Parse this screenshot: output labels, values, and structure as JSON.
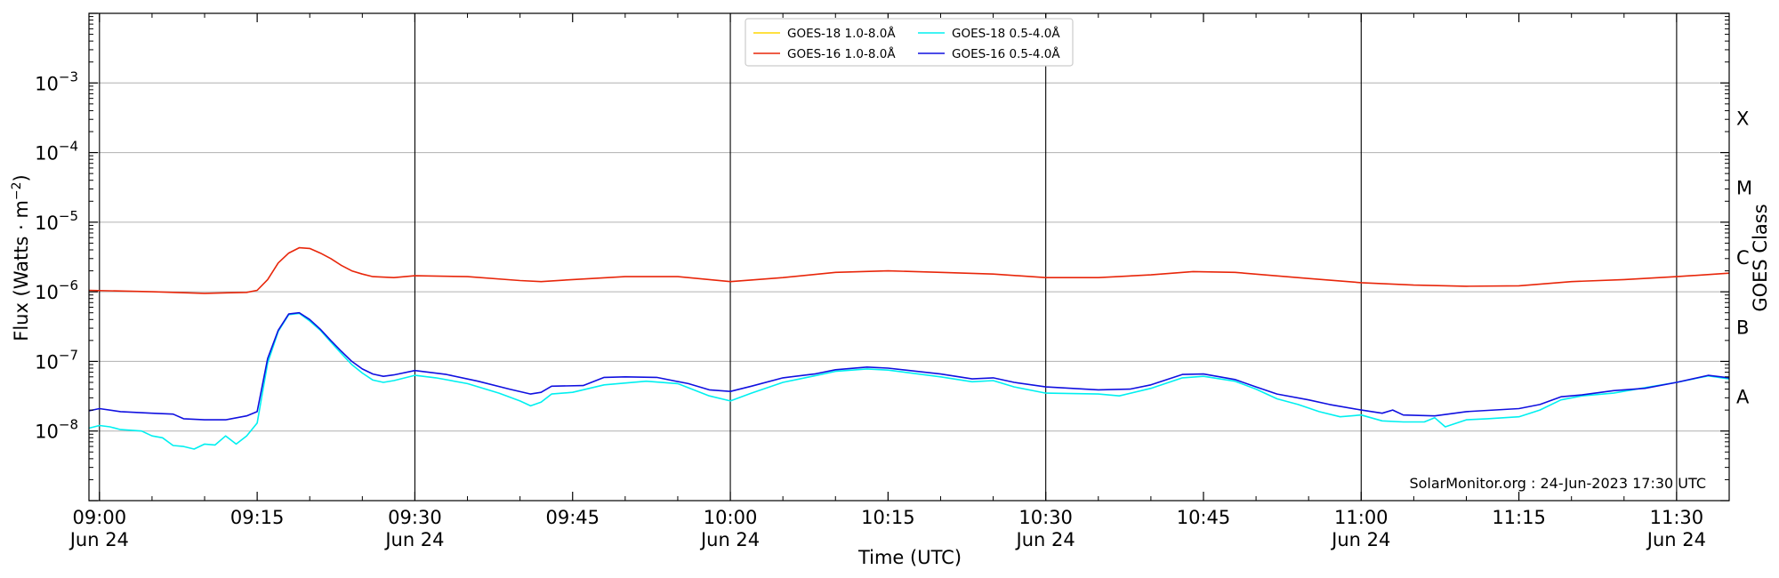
{
  "chart_data": {
    "type": "line",
    "xlabel": "Time (UTC)",
    "ylabel_main": "Flux (Watts · m",
    "ylabel_sup": "−2",
    "ylabel_close": ")",
    "ylabel_right": "GOES Class",
    "y_scale": "log",
    "ylim": [
      1e-09,
      0.01
    ],
    "xlim": [
      "08:59",
      "11:35"
    ],
    "grid": "horizontal at decades; vertical at half hours",
    "legend_position": "top-center",
    "watermark": "SolarMonitor.org : 24-Jun-2023 17:30 UTC",
    "x_ticks": [
      {
        "t": "09:00",
        "label": "09:00",
        "sub": "Jun 24"
      },
      {
        "t": "09:15",
        "label": "09:15",
        "sub": ""
      },
      {
        "t": "09:30",
        "label": "09:30",
        "sub": "Jun 24"
      },
      {
        "t": "09:45",
        "label": "09:45",
        "sub": ""
      },
      {
        "t": "10:00",
        "label": "10:00",
        "sub": "Jun 24"
      },
      {
        "t": "10:15",
        "label": "10:15",
        "sub": ""
      },
      {
        "t": "10:30",
        "label": "10:30",
        "sub": "Jun 24"
      },
      {
        "t": "10:45",
        "label": "10:45",
        "sub": ""
      },
      {
        "t": "11:00",
        "label": "11:00",
        "sub": "Jun 24"
      },
      {
        "t": "11:15",
        "label": "11:15",
        "sub": ""
      },
      {
        "t": "11:30",
        "label": "11:30",
        "sub": "Jun 24"
      }
    ],
    "y_ticks": [
      {
        "v": 1e-08,
        "base": "10",
        "exp": "−8"
      },
      {
        "v": 1e-07,
        "base": "10",
        "exp": "−7"
      },
      {
        "v": 1e-06,
        "base": "10",
        "exp": "−6"
      },
      {
        "v": 1e-05,
        "base": "10",
        "exp": "−5"
      },
      {
        "v": 0.0001,
        "base": "10",
        "exp": "−4"
      },
      {
        "v": 0.001,
        "base": "10",
        "exp": "−3"
      }
    ],
    "vlines": [
      "09:00",
      "09:30",
      "10:00",
      "10:30",
      "11:00",
      "11:30"
    ],
    "goes_classes": [
      {
        "label": "A",
        "v": 3.16e-08
      },
      {
        "label": "B",
        "v": 3.16e-07
      },
      {
        "label": "C",
        "v": 3.16e-06
      },
      {
        "label": "M",
        "v": 3.16e-05
      },
      {
        "label": "X",
        "v": 0.000316
      }
    ],
    "series": [
      {
        "name": "GOES-18 1.0-8.0Å",
        "color": "#FFD700",
        "points": []
      },
      {
        "name": "GOES-16 1.0-8.0Å",
        "color": "#E8260A",
        "points": [
          [
            "08:59",
            1.05e-06
          ],
          [
            "09:05",
            1e-06
          ],
          [
            "09:10",
            9.5e-07
          ],
          [
            "09:14",
            9.8e-07
          ],
          [
            "09:15",
            1.05e-06
          ],
          [
            "09:16",
            1.5e-06
          ],
          [
            "09:17",
            2.6e-06
          ],
          [
            "09:18",
            3.6e-06
          ],
          [
            "09:19",
            4.3e-06
          ],
          [
            "09:20",
            4.2e-06
          ],
          [
            "09:21",
            3.6e-06
          ],
          [
            "09:22",
            3e-06
          ],
          [
            "09:23",
            2.4e-06
          ],
          [
            "09:24",
            2e-06
          ],
          [
            "09:25",
            1.8e-06
          ],
          [
            "09:26",
            1.65e-06
          ],
          [
            "09:28",
            1.6e-06
          ],
          [
            "09:30",
            1.7e-06
          ],
          [
            "09:35",
            1.65e-06
          ],
          [
            "09:40",
            1.45e-06
          ],
          [
            "09:42",
            1.4e-06
          ],
          [
            "09:45",
            1.5e-06
          ],
          [
            "09:50",
            1.65e-06
          ],
          [
            "09:55",
            1.65e-06
          ],
          [
            "10:00",
            1.4e-06
          ],
          [
            "10:05",
            1.6e-06
          ],
          [
            "10:10",
            1.9e-06
          ],
          [
            "10:15",
            2e-06
          ],
          [
            "10:20",
            1.9e-06
          ],
          [
            "10:25",
            1.8e-06
          ],
          [
            "10:30",
            1.6e-06
          ],
          [
            "10:35",
            1.6e-06
          ],
          [
            "10:40",
            1.75e-06
          ],
          [
            "10:44",
            1.95e-06
          ],
          [
            "10:48",
            1.9e-06
          ],
          [
            "10:55",
            1.55e-06
          ],
          [
            "11:00",
            1.35e-06
          ],
          [
            "11:05",
            1.25e-06
          ],
          [
            "11:10",
            1.2e-06
          ],
          [
            "11:15",
            1.22e-06
          ],
          [
            "11:20",
            1.4e-06
          ],
          [
            "11:25",
            1.5e-06
          ],
          [
            "11:30",
            1.65e-06
          ],
          [
            "11:35",
            1.85e-06
          ]
        ]
      },
      {
        "name": "GOES-18 0.5-4.0Å",
        "color": "#00F0F0",
        "points": [
          [
            "08:59",
            1.1e-08
          ],
          [
            "09:00",
            1.2e-08
          ],
          [
            "09:01",
            1.15e-08
          ],
          [
            "09:02",
            1.05e-08
          ],
          [
            "09:04",
            1e-08
          ],
          [
            "09:05",
            8.5e-09
          ],
          [
            "09:06",
            8e-09
          ],
          [
            "09:07",
            6.2e-09
          ],
          [
            "09:08",
            6e-09
          ],
          [
            "09:09",
            5.5e-09
          ],
          [
            "09:10",
            6.5e-09
          ],
          [
            "09:11",
            6.3e-09
          ],
          [
            "09:12",
            8.5e-09
          ],
          [
            "09:13",
            6.5e-09
          ],
          [
            "09:14",
            8.5e-09
          ],
          [
            "09:15",
            1.3e-08
          ],
          [
            "09:16",
            9.5e-08
          ],
          [
            "09:17",
            2.7e-07
          ],
          [
            "09:18",
            4.7e-07
          ],
          [
            "09:19",
            4.9e-07
          ],
          [
            "09:20",
            3.8e-07
          ],
          [
            "09:21",
            2.8e-07
          ],
          [
            "09:22",
            1.9e-07
          ],
          [
            "09:23",
            1.3e-07
          ],
          [
            "09:24",
            9e-08
          ],
          [
            "09:25",
            6.8e-08
          ],
          [
            "09:26",
            5.4e-08
          ],
          [
            "09:27",
            5e-08
          ],
          [
            "09:28",
            5.3e-08
          ],
          [
            "09:30",
            6.3e-08
          ],
          [
            "09:32",
            5.8e-08
          ],
          [
            "09:35",
            4.8e-08
          ],
          [
            "09:38",
            3.5e-08
          ],
          [
            "09:40",
            2.7e-08
          ],
          [
            "09:41",
            2.3e-08
          ],
          [
            "09:42",
            2.6e-08
          ],
          [
            "09:43",
            3.4e-08
          ],
          [
            "09:45",
            3.6e-08
          ],
          [
            "09:48",
            4.6e-08
          ],
          [
            "09:52",
            5.2e-08
          ],
          [
            "09:55",
            4.8e-08
          ],
          [
            "09:58",
            3.2e-08
          ],
          [
            "10:00",
            2.7e-08
          ],
          [
            "10:02",
            3.5e-08
          ],
          [
            "10:05",
            5e-08
          ],
          [
            "10:08",
            6.2e-08
          ],
          [
            "10:10",
            7.2e-08
          ],
          [
            "10:13",
            7.8e-08
          ],
          [
            "10:15",
            7.5e-08
          ],
          [
            "10:20",
            6e-08
          ],
          [
            "10:23",
            5.1e-08
          ],
          [
            "10:25",
            5.3e-08
          ],
          [
            "10:27",
            4.3e-08
          ],
          [
            "10:30",
            3.5e-08
          ],
          [
            "10:35",
            3.4e-08
          ],
          [
            "10:37",
            3.2e-08
          ],
          [
            "10:40",
            4.1e-08
          ],
          [
            "10:43",
            5.8e-08
          ],
          [
            "10:45",
            6.1e-08
          ],
          [
            "10:48",
            5.2e-08
          ],
          [
            "10:50",
            4e-08
          ],
          [
            "10:52",
            2.9e-08
          ],
          [
            "10:54",
            2.4e-08
          ],
          [
            "10:56",
            1.9e-08
          ],
          [
            "10:58",
            1.6e-08
          ],
          [
            "11:00",
            1.7e-08
          ],
          [
            "11:02",
            1.4e-08
          ],
          [
            "11:04",
            1.35e-08
          ],
          [
            "11:06",
            1.35e-08
          ],
          [
            "11:07",
            1.55e-08
          ],
          [
            "11:08",
            1.15e-08
          ],
          [
            "11:10",
            1.45e-08
          ],
          [
            "11:12",
            1.5e-08
          ],
          [
            "11:15",
            1.6e-08
          ],
          [
            "11:17",
            2e-08
          ],
          [
            "11:19",
            2.8e-08
          ],
          [
            "11:21",
            3.2e-08
          ],
          [
            "11:24",
            3.5e-08
          ],
          [
            "11:27",
            4.2e-08
          ],
          [
            "11:30",
            5e-08
          ],
          [
            "11:33",
            6.2e-08
          ],
          [
            "11:35",
            5.6e-08
          ]
        ]
      },
      {
        "name": "GOES-16 0.5-4.0Å",
        "color": "#1010E0",
        "points": [
          [
            "08:59",
            1.95e-08
          ],
          [
            "09:00",
            2.1e-08
          ],
          [
            "09:02",
            1.9e-08
          ],
          [
            "09:05",
            1.8e-08
          ],
          [
            "09:07",
            1.75e-08
          ],
          [
            "09:08",
            1.5e-08
          ],
          [
            "09:10",
            1.45e-08
          ],
          [
            "09:12",
            1.45e-08
          ],
          [
            "09:14",
            1.65e-08
          ],
          [
            "09:15",
            1.9e-08
          ],
          [
            "09:16",
            1.1e-07
          ],
          [
            "09:17",
            2.8e-07
          ],
          [
            "09:18",
            4.8e-07
          ],
          [
            "09:19",
            5e-07
          ],
          [
            "09:20",
            4e-07
          ],
          [
            "09:21",
            2.9e-07
          ],
          [
            "09:22",
            2e-07
          ],
          [
            "09:23",
            1.4e-07
          ],
          [
            "09:24",
            1e-07
          ],
          [
            "09:25",
            7.8e-08
          ],
          [
            "09:26",
            6.6e-08
          ],
          [
            "09:27",
            6.1e-08
          ],
          [
            "09:28",
            6.4e-08
          ],
          [
            "09:30",
            7.4e-08
          ],
          [
            "09:33",
            6.5e-08
          ],
          [
            "09:36",
            5.2e-08
          ],
          [
            "09:39",
            4e-08
          ],
          [
            "09:41",
            3.4e-08
          ],
          [
            "09:42",
            3.6e-08
          ],
          [
            "09:43",
            4.4e-08
          ],
          [
            "09:46",
            4.5e-08
          ],
          [
            "09:48",
            5.9e-08
          ],
          [
            "09:50",
            6e-08
          ],
          [
            "09:53",
            5.9e-08
          ],
          [
            "09:56",
            4.8e-08
          ],
          [
            "09:58",
            3.9e-08
          ],
          [
            "10:00",
            3.7e-08
          ],
          [
            "10:02",
            4.4e-08
          ],
          [
            "10:05",
            5.8e-08
          ],
          [
            "10:08",
            6.6e-08
          ],
          [
            "10:10",
            7.6e-08
          ],
          [
            "10:13",
            8.3e-08
          ],
          [
            "10:15",
            8e-08
          ],
          [
            "10:20",
            6.6e-08
          ],
          [
            "10:23",
            5.6e-08
          ],
          [
            "10:25",
            5.8e-08
          ],
          [
            "10:27",
            5e-08
          ],
          [
            "10:30",
            4.3e-08
          ],
          [
            "10:35",
            3.9e-08
          ],
          [
            "10:38",
            4e-08
          ],
          [
            "10:40",
            4.6e-08
          ],
          [
            "10:43",
            6.5e-08
          ],
          [
            "10:45",
            6.6e-08
          ],
          [
            "10:48",
            5.5e-08
          ],
          [
            "10:50",
            4.3e-08
          ],
          [
            "10:52",
            3.4e-08
          ],
          [
            "10:55",
            2.8e-08
          ],
          [
            "10:57",
            2.4e-08
          ],
          [
            "11:00",
            2e-08
          ],
          [
            "11:02",
            1.8e-08
          ],
          [
            "11:03",
            2e-08
          ],
          [
            "11:04",
            1.7e-08
          ],
          [
            "11:07",
            1.65e-08
          ],
          [
            "11:10",
            1.9e-08
          ],
          [
            "11:15",
            2.1e-08
          ],
          [
            "11:17",
            2.4e-08
          ],
          [
            "11:19",
            3.1e-08
          ],
          [
            "11:21",
            3.3e-08
          ],
          [
            "11:24",
            3.8e-08
          ],
          [
            "11:27",
            4.1e-08
          ],
          [
            "11:30",
            5e-08
          ],
          [
            "11:33",
            6.3e-08
          ],
          [
            "11:35",
            5.8e-08
          ]
        ]
      }
    ]
  }
}
